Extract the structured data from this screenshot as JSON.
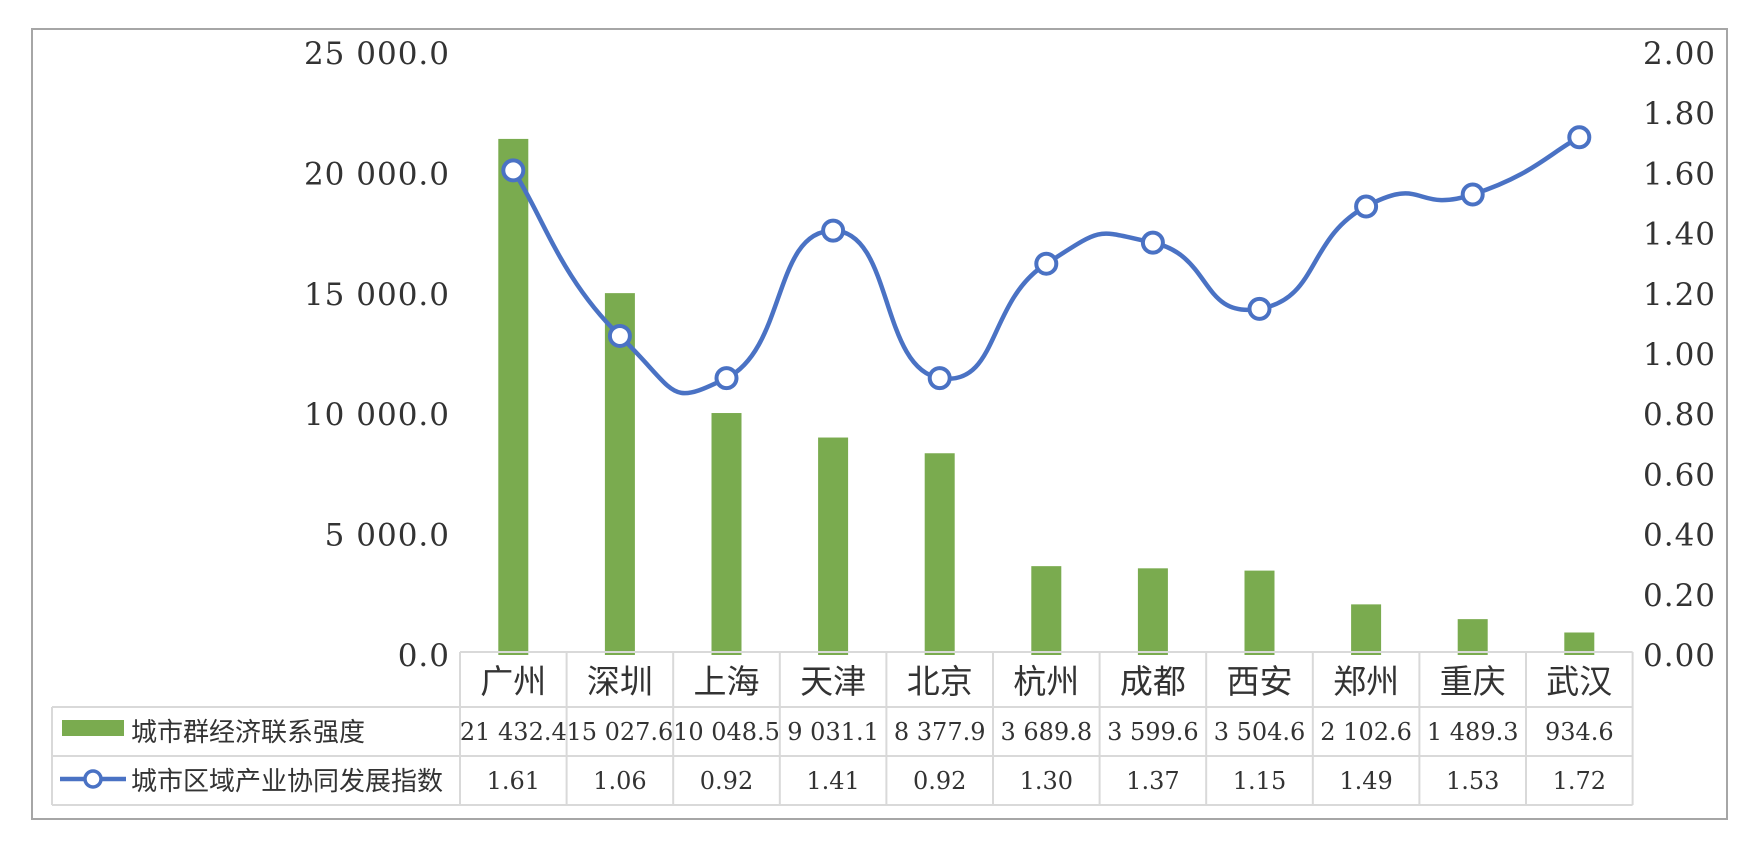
{
  "chart_data": {
    "type": "bar",
    "categories": [
      "广州",
      "深圳",
      "上海",
      "天津",
      "北京",
      "杭州",
      "成都",
      "西安",
      "郑州",
      "重庆",
      "武汉"
    ],
    "series": [
      {
        "name": "城市群经济联系强度",
        "type": "bar",
        "axis": "left",
        "values": [
          21432.4,
          15027.6,
          10048.5,
          9031.1,
          8377.9,
          3689.8,
          3599.6,
          3504.6,
          2102.6,
          1489.3,
          934.6
        ],
        "labels": [
          "21 432.4",
          "15 027.6",
          "10 048.5",
          "9 031.1",
          "8 377.9",
          "3 689.8",
          "3 599.6",
          "3 504.6",
          "2 102.6",
          "1 489.3",
          "934.6"
        ],
        "color": "#7aab4f"
      },
      {
        "name": "城市区域产业协同发展指数",
        "type": "line",
        "smooth": true,
        "marker": "circle",
        "axis": "right",
        "values": [
          1.61,
          1.06,
          0.92,
          1.41,
          0.92,
          1.3,
          1.37,
          1.15,
          1.49,
          1.53,
          1.72
        ],
        "labels": [
          "1.61",
          "1.06",
          "0.92",
          "1.41",
          "0.92",
          "1.30",
          "1.37",
          "1.15",
          "1.49",
          "1.53",
          "1.72"
        ],
        "color": "#4a72c4"
      }
    ],
    "y_left": {
      "ylim": [
        0,
        25000
      ],
      "ticks": [
        0,
        5000,
        10000,
        15000,
        20000,
        25000
      ],
      "tick_labels": [
        "0.0",
        "5 000.0",
        "10 000.0",
        "15 000.0",
        "20 000.0",
        "25 000.0"
      ]
    },
    "y_right": {
      "ylim": [
        0,
        2.0
      ],
      "ticks": [
        0,
        0.2,
        0.4,
        0.6,
        0.8,
        1.0,
        1.2,
        1.4,
        1.6,
        1.8,
        2.0
      ],
      "tick_labels": [
        "0.00",
        "0.20",
        "0.40",
        "0.60",
        "0.80",
        "1.00",
        "1.20",
        "1.40",
        "1.60",
        "1.80",
        "2.00"
      ]
    },
    "grid": false,
    "data_table": true,
    "legend": "data-table"
  }
}
